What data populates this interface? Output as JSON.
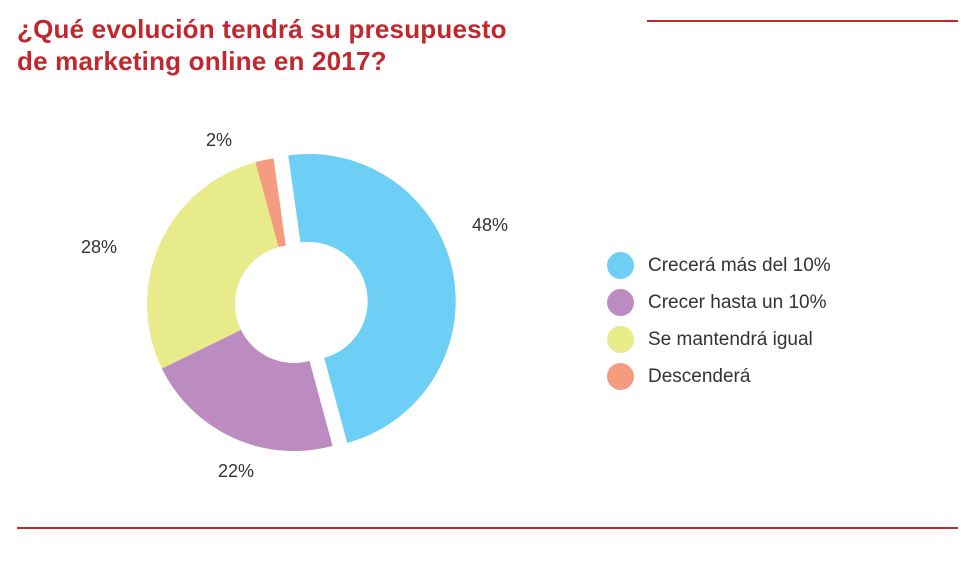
{
  "header": {
    "title_line1": "¿Qué evolución tendrá su presupuesto",
    "title_line2": "de marketing online en 2017?"
  },
  "colors": {
    "accent": "#c1272d",
    "text": "#333333"
  },
  "chart_data": {
    "type": "pie",
    "variant": "donut",
    "title": "¿Qué evolución tendrá su presupuesto de marketing online en 2017?",
    "legend_position": "right",
    "slices": [
      {
        "name": "Crecerá más del 10%",
        "value": 48,
        "label": "48%",
        "color": "#6dcff6",
        "exploded": true
      },
      {
        "name": "Crecer hasta un 10%",
        "value": 22,
        "label": "22%",
        "color": "#bc8bbf",
        "exploded": false
      },
      {
        "name": "Se mantendrá igual",
        "value": 28,
        "label": "28%",
        "color": "#e8eb8a",
        "exploded": false
      },
      {
        "name": "Descenderá",
        "value": 2,
        "label": "2%",
        "color": "#f59b80",
        "exploded": false
      }
    ]
  }
}
